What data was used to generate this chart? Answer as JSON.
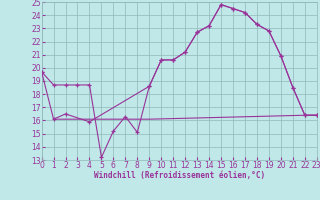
{
  "xlabel": "Windchill (Refroidissement éolien,°C)",
  "bg_color": "#c0e8e8",
  "grid_color": "#90b8b8",
  "line_color": "#993399",
  "ylim": [
    13,
    25
  ],
  "xlim": [
    0,
    23
  ],
  "yticks": [
    13,
    14,
    15,
    16,
    17,
    18,
    19,
    20,
    21,
    22,
    23,
    24,
    25
  ],
  "xticks": [
    0,
    1,
    2,
    3,
    4,
    5,
    6,
    7,
    8,
    9,
    10,
    11,
    12,
    13,
    14,
    15,
    16,
    17,
    18,
    19,
    20,
    21,
    22,
    23
  ],
  "line1_x": [
    0,
    1,
    2,
    3,
    4,
    5,
    6,
    7,
    8,
    9,
    10,
    11,
    12,
    13,
    14,
    15,
    16,
    17,
    18,
    19,
    20,
    21,
    22,
    23
  ],
  "line1_y": [
    19.7,
    18.7,
    18.7,
    18.7,
    18.7,
    13.2,
    15.2,
    16.3,
    15.1,
    18.6,
    20.6,
    20.6,
    21.2,
    22.7,
    23.2,
    24.8,
    24.5,
    24.2,
    23.3,
    22.8,
    20.9,
    18.5,
    16.4,
    16.4
  ],
  "line2_x": [
    0,
    1,
    2,
    4,
    9,
    10,
    11,
    12,
    13,
    14,
    15,
    16,
    17,
    18,
    19,
    20,
    21,
    22,
    23
  ],
  "line2_y": [
    19.7,
    16.1,
    16.5,
    15.9,
    18.6,
    20.6,
    20.6,
    21.2,
    22.7,
    23.2,
    24.8,
    24.5,
    24.2,
    23.3,
    22.8,
    20.9,
    18.5,
    16.4,
    16.4
  ],
  "line3_x": [
    1,
    9,
    22,
    23
  ],
  "line3_y": [
    16.1,
    16.1,
    16.4,
    16.4
  ]
}
